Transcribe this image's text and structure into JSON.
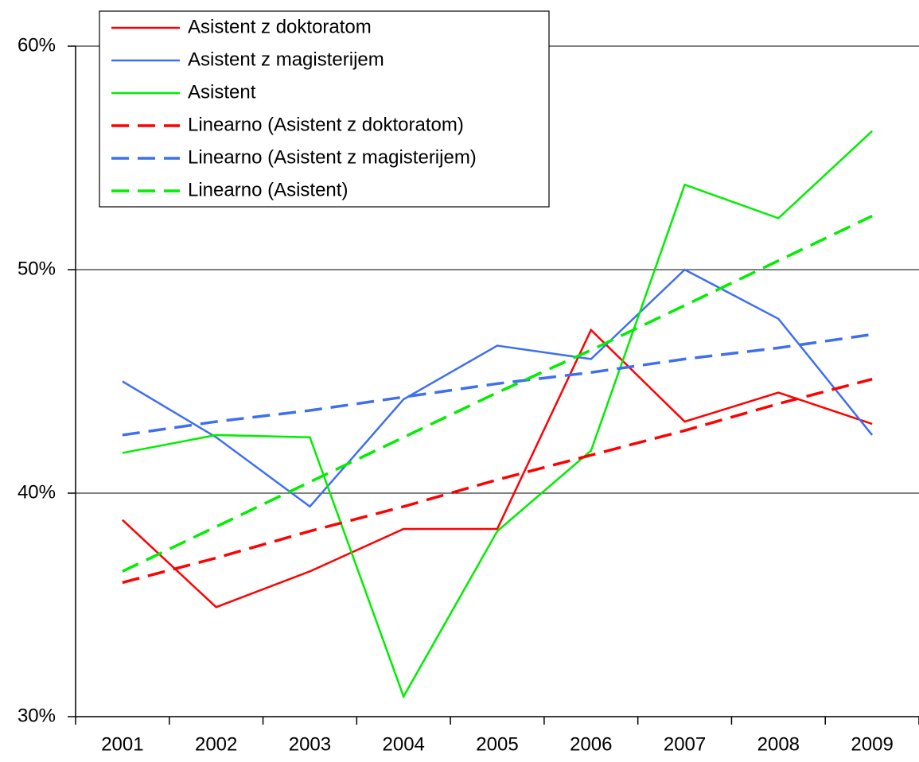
{
  "chart_data": {
    "type": "line",
    "categories": [
      "2001",
      "2002",
      "2003",
      "2004",
      "2005",
      "2006",
      "2007",
      "2008",
      "2009"
    ],
    "series": [
      {
        "name": "Asistent z doktoratom",
        "color": "#ff0000",
        "dash": false,
        "values": [
          38.8,
          34.9,
          36.5,
          38.4,
          38.4,
          47.3,
          43.2,
          44.5,
          43.1
        ]
      },
      {
        "name": "Asistent z magisterijem",
        "color": "#3e6ff0",
        "dash": false,
        "values": [
          45.0,
          42.5,
          39.4,
          44.2,
          46.6,
          46.0,
          50.0,
          47.8,
          42.6
        ]
      },
      {
        "name": "Asistent",
        "color": "#00ee00",
        "dash": false,
        "values": [
          41.8,
          42.6,
          42.5,
          30.9,
          38.3,
          41.9,
          53.8,
          52.3,
          56.2
        ]
      },
      {
        "name": "Linearno (Asistent z doktoratom)",
        "color": "#ff0000",
        "dash": true,
        "values": [
          36.0,
          37.1,
          38.3,
          39.4,
          40.6,
          41.7,
          42.8,
          44.0,
          45.1
        ]
      },
      {
        "name": "Linearno (Asistent z magisterijem)",
        "color": "#3e6ff0",
        "dash": true,
        "values": [
          42.6,
          43.2,
          43.7,
          44.3,
          44.9,
          45.4,
          46.0,
          46.5,
          47.1
        ]
      },
      {
        "name": "Linearno (Asistent)",
        "color": "#00ee00",
        "dash": true,
        "values": [
          36.5,
          38.5,
          40.5,
          42.5,
          44.5,
          46.4,
          48.4,
          50.4,
          52.4
        ]
      }
    ],
    "ylim": [
      30,
      60
    ],
    "yticks": [
      {
        "value": 30,
        "label": "30%"
      },
      {
        "value": 40,
        "label": "40%"
      },
      {
        "value": 50,
        "label": "50%"
      },
      {
        "value": 60,
        "label": "60%"
      }
    ],
    "grid": true,
    "legend": "top-left"
  }
}
